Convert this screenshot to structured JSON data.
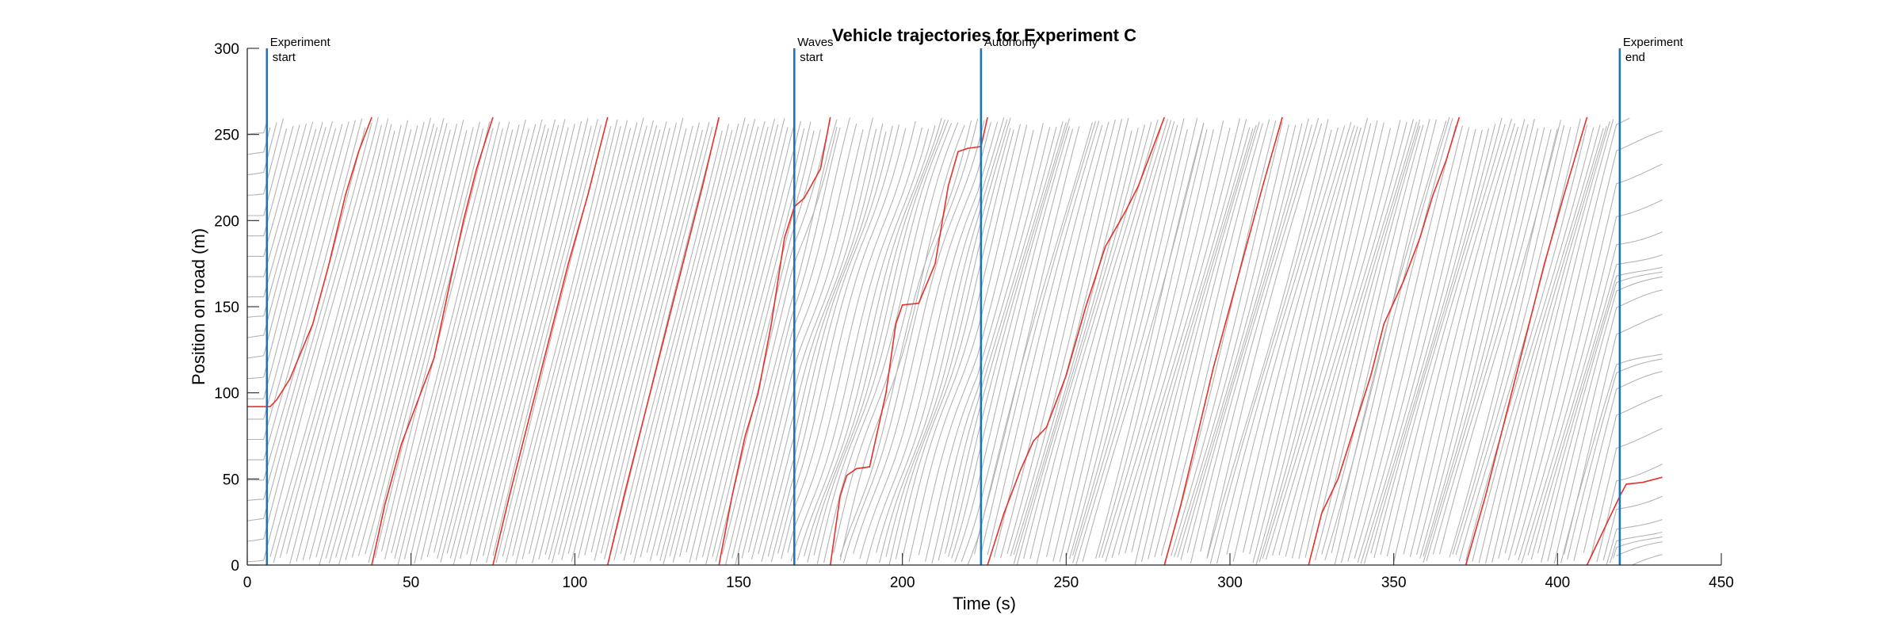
{
  "chart_data": {
    "type": "line",
    "title": "Vehicle trajectories for Experiment C",
    "xlabel": "Time (s)",
    "ylabel": "Position on road (m)",
    "xlim": [
      0,
      450
    ],
    "ylim": [
      0,
      300
    ],
    "xticks": [
      0,
      50,
      100,
      150,
      200,
      250,
      300,
      350,
      400,
      450
    ],
    "yticks": [
      0,
      50,
      100,
      150,
      200,
      250,
      300
    ],
    "xtick_labels": [
      "0",
      "50",
      "100",
      "150",
      "200",
      "250",
      "300",
      "350",
      "400",
      "450"
    ],
    "ytick_labels": [
      "0",
      "50",
      "100",
      "150",
      "200",
      "250",
      "300"
    ],
    "grid": false,
    "road_length": 260,
    "series": [
      {
        "name": "",
        "role": "highlighted vehicle",
        "color": "#e8302a",
        "points": [
          [
            0,
            92
          ],
          [
            7,
            92
          ],
          [
            9,
            96
          ],
          [
            13,
            108
          ],
          [
            20,
            140
          ],
          [
            25,
            175
          ],
          [
            30,
            215
          ],
          [
            34,
            240
          ],
          [
            38,
            260
          ],
          [
            38,
            0
          ],
          [
            42,
            35
          ],
          [
            47,
            70
          ],
          [
            52,
            95
          ],
          [
            57,
            120
          ],
          [
            62,
            165
          ],
          [
            66,
            200
          ],
          [
            70,
            230
          ],
          [
            75,
            260
          ],
          [
            75,
            0
          ],
          [
            80,
            40
          ],
          [
            86,
            85
          ],
          [
            92,
            130
          ],
          [
            98,
            175
          ],
          [
            104,
            215
          ],
          [
            110,
            260
          ],
          [
            110,
            0
          ],
          [
            115,
            40
          ],
          [
            121,
            85
          ],
          [
            127,
            130
          ],
          [
            133,
            175
          ],
          [
            139,
            220
          ],
          [
            144,
            260
          ],
          [
            144,
            0
          ],
          [
            148,
            40
          ],
          [
            152,
            75
          ],
          [
            156,
            100
          ],
          [
            160,
            140
          ],
          [
            164,
            190
          ],
          [
            167,
            208
          ],
          [
            170,
            213
          ],
          [
            175,
            230
          ],
          [
            178,
            260
          ],
          [
            178,
            0
          ],
          [
            181,
            40
          ],
          [
            183,
            52
          ],
          [
            186,
            56
          ],
          [
            190,
            57
          ],
          [
            195,
            100
          ],
          [
            198,
            140
          ],
          [
            200,
            151
          ],
          [
            205,
            152
          ],
          [
            210,
            175
          ],
          [
            214,
            220
          ],
          [
            217,
            240
          ],
          [
            220,
            242
          ],
          [
            224,
            243
          ],
          [
            226,
            260
          ],
          [
            226,
            0
          ],
          [
            231,
            30
          ],
          [
            236,
            55
          ],
          [
            240,
            72
          ],
          [
            244,
            80
          ],
          [
            250,
            110
          ],
          [
            256,
            150
          ],
          [
            262,
            185
          ],
          [
            268,
            205
          ],
          [
            272,
            220
          ],
          [
            276,
            240
          ],
          [
            280,
            260
          ],
          [
            280,
            0
          ],
          [
            285,
            35
          ],
          [
            290,
            75
          ],
          [
            295,
            115
          ],
          [
            300,
            150
          ],
          [
            305,
            185
          ],
          [
            310,
            220
          ],
          [
            316,
            260
          ],
          [
            324,
            0
          ],
          [
            328,
            30
          ],
          [
            333,
            50
          ],
          [
            338,
            80
          ],
          [
            343,
            110
          ],
          [
            347,
            140
          ],
          [
            353,
            165
          ],
          [
            358,
            190
          ],
          [
            362,
            215
          ],
          [
            366,
            235
          ],
          [
            370,
            260
          ],
          [
            372,
            0
          ],
          [
            378,
            40
          ],
          [
            384,
            85
          ],
          [
            390,
            130
          ],
          [
            396,
            175
          ],
          [
            402,
            215
          ],
          [
            409,
            260
          ],
          [
            409,
            0
          ],
          [
            414,
            20
          ],
          [
            419,
            40
          ],
          [
            421,
            47
          ],
          [
            426,
            48
          ],
          [
            432,
            51
          ]
        ]
      }
    ],
    "background_series": {
      "color": "#b4b4b4",
      "description_count": 22
    },
    "events": [
      {
        "x": 6,
        "label_line1": "Experiment",
        "label_line2": "start",
        "color": "#1f74b8"
      },
      {
        "x": 167,
        "label_line1": "Waves",
        "label_line2": "start",
        "color": "#1f74b8"
      },
      {
        "x": 224,
        "label_line1": "Autonomy",
        "label_line2": "",
        "color": "#1f74b8"
      },
      {
        "x": 419,
        "label_line1": "Experiment",
        "label_line2": "end",
        "color": "#1f74b8"
      }
    ],
    "colors": {
      "highlight": "#e8302a",
      "background": "#b4b4b4",
      "event_line": "#1f74b8",
      "axis": "#262626"
    }
  }
}
